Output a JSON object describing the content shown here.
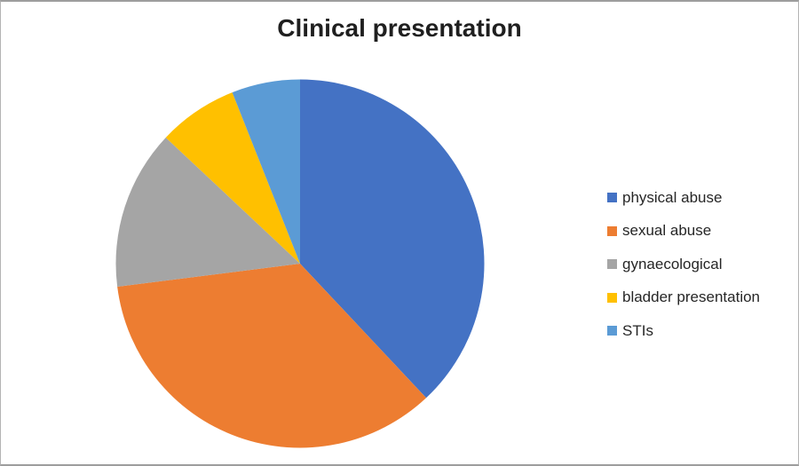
{
  "page": {
    "background": "#ffffff",
    "border_color": "#9d9d9d"
  },
  "chart_data": {
    "type": "pie",
    "title": "Clinical presentation",
    "categories": [
      "physical abuse",
      "sexual abuse",
      "gynaecological",
      "bladder presentation",
      "STIs"
    ],
    "values": [
      38,
      35,
      14,
      7,
      6
    ],
    "colors": [
      "#4472c4",
      "#ed7d31",
      "#a5a5a5",
      "#ffc000",
      "#5b9bd5"
    ],
    "legend_position": "right",
    "start_angle_deg": 0,
    "direction": "clockwise",
    "title_color": "#1f1f1f",
    "legend_text_color": "#262626"
  }
}
